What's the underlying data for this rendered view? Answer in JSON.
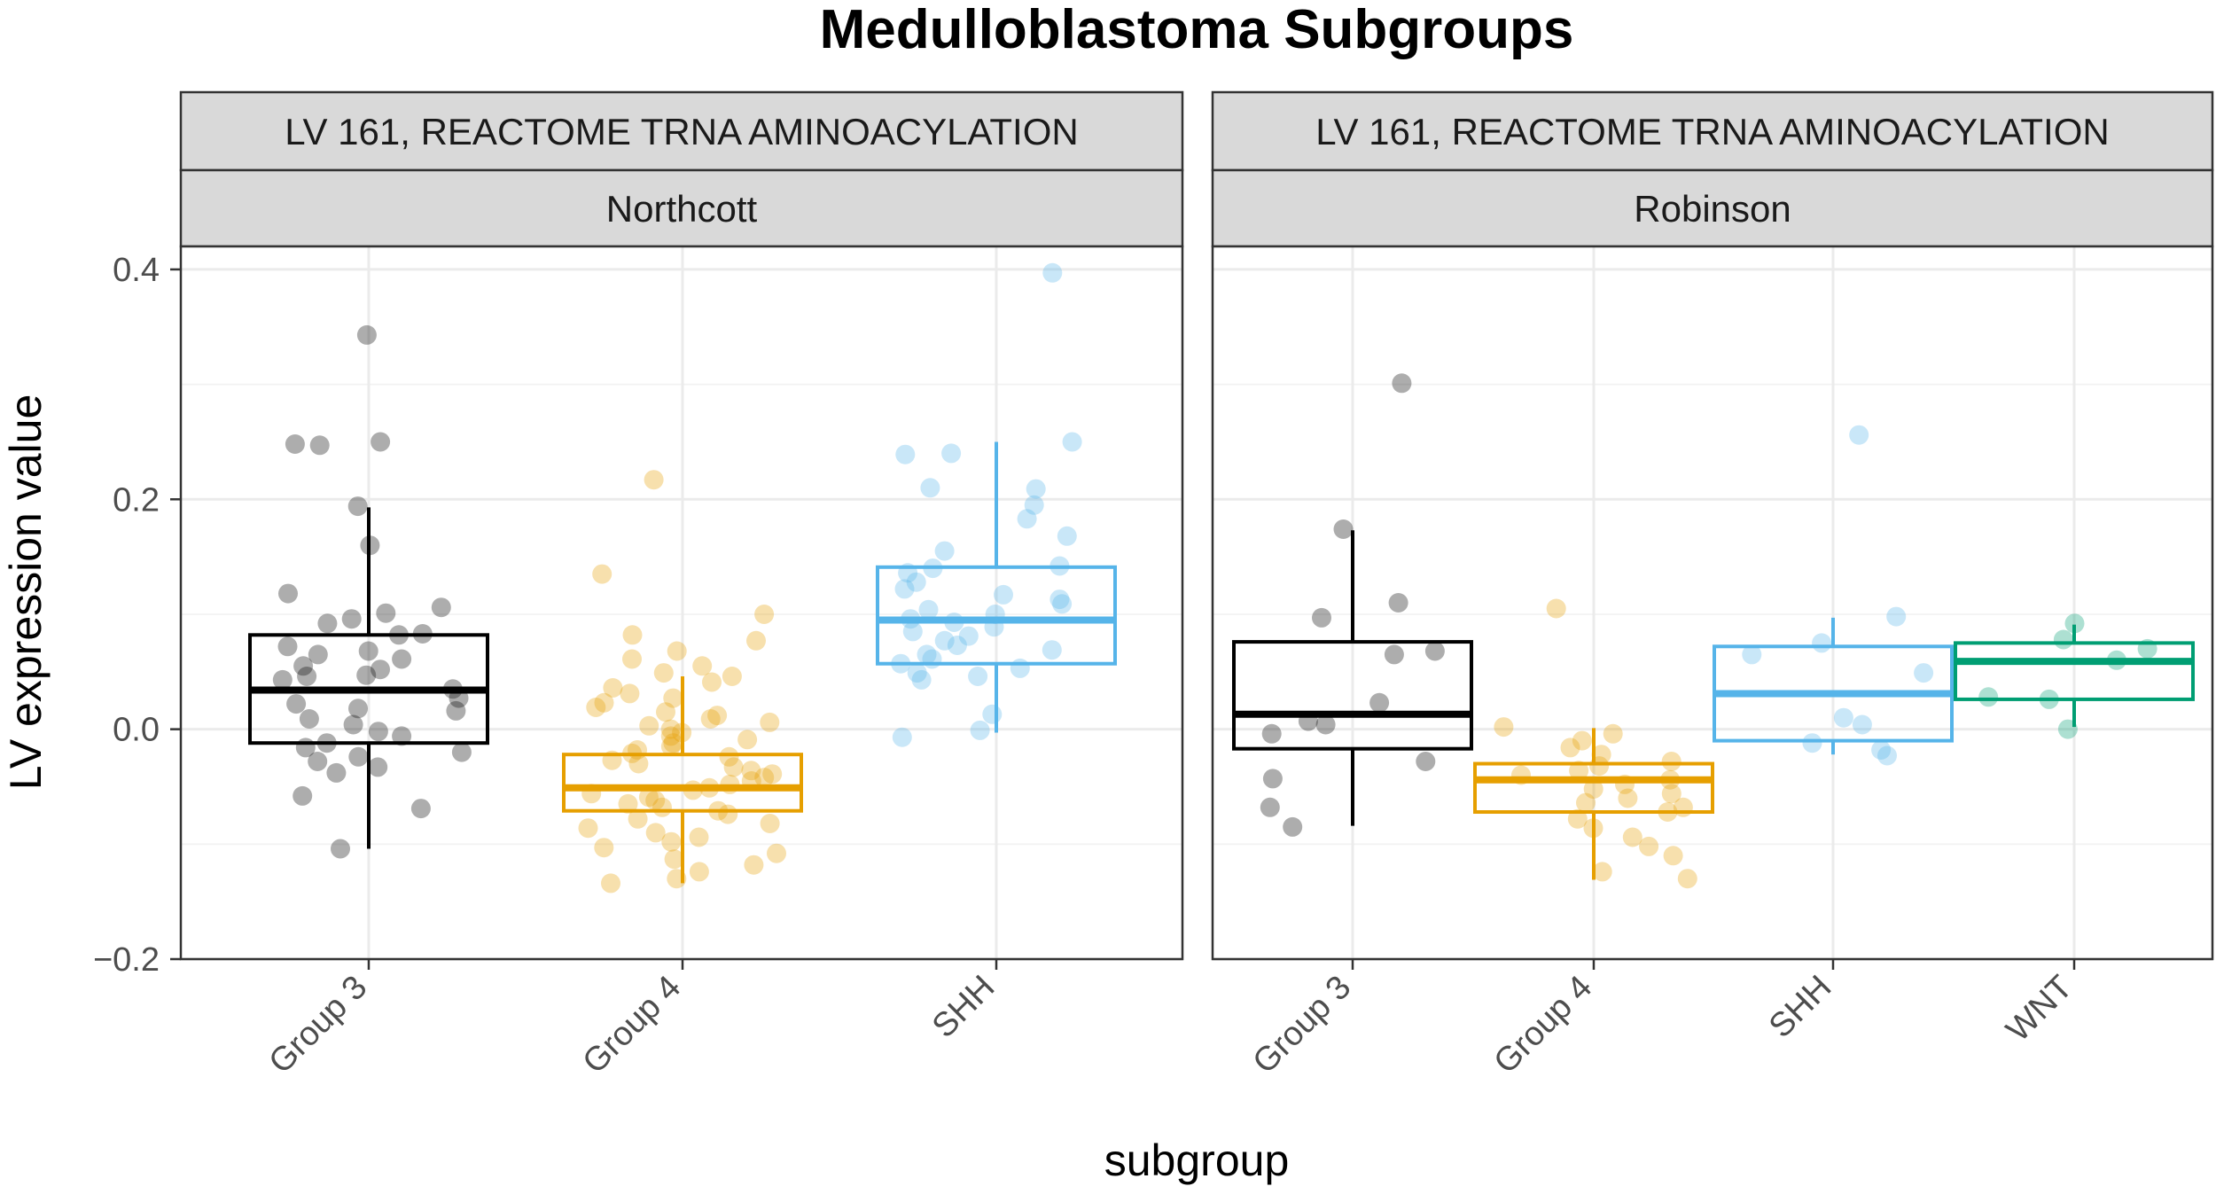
{
  "chart_data": {
    "type": "box",
    "title": "Medulloblastoma Subgroups",
    "xlabel": "subgroup",
    "ylabel": "LV expression value",
    "ylim": [
      -0.2,
      0.42
    ],
    "yticks": [
      -0.2,
      0.0,
      0.2,
      0.4
    ],
    "ytick_labels": [
      "−0.2",
      "0.0",
      "0.2",
      "0.4"
    ],
    "grid": true,
    "colors": {
      "Group 3": "#000000",
      "Group 4": "#E69F00",
      "SHH": "#56B4E9",
      "WNT": "#009E73"
    },
    "panels": [
      {
        "strip_top": "LV 161, REACTOME TRNA AMINOACYLATION",
        "strip_bottom": "Northcott",
        "categories": [
          "Group 3",
          "Group 4",
          "SHH"
        ],
        "boxes": [
          {
            "name": "Group 3",
            "whisker_low": -0.104,
            "q1": -0.012,
            "median": 0.034,
            "q3": 0.082,
            "whisker_high": 0.193
          },
          {
            "name": "Group 4",
            "whisker_low": -0.134,
            "q1": -0.071,
            "median": -0.051,
            "q3": -0.022,
            "whisker_high": 0.046
          },
          {
            "name": "SHH",
            "whisker_low": -0.003,
            "q1": 0.057,
            "median": 0.095,
            "q3": 0.141,
            "whisker_high": 0.25
          }
        ],
        "points": [
          {
            "name": "Group 3",
            "values": [
              0.343,
              0.25,
              0.248,
              0.247,
              0.194,
              0.16,
              0.118,
              0.106,
              0.101,
              0.096,
              0.092,
              0.083,
              0.082,
              0.072,
              0.068,
              0.065,
              0.061,
              0.055,
              0.052,
              0.047,
              0.046,
              0.043,
              0.035,
              0.027,
              0.022,
              0.018,
              0.016,
              0.009,
              0.004,
              -0.002,
              -0.006,
              -0.012,
              -0.016,
              -0.02,
              -0.024,
              -0.028,
              -0.033,
              -0.038,
              -0.058,
              -0.069,
              -0.104
            ]
          },
          {
            "name": "Group 4",
            "values": [
              0.217,
              0.135,
              0.1,
              0.082,
              0.077,
              0.068,
              0.061,
              0.055,
              0.049,
              0.046,
              0.041,
              0.036,
              0.031,
              0.027,
              0.023,
              0.019,
              0.015,
              0.012,
              0.009,
              0.006,
              0.003,
              0.0,
              -0.003,
              -0.006,
              -0.009,
              -0.012,
              -0.015,
              -0.018,
              -0.021,
              -0.024,
              -0.027,
              -0.03,
              -0.033,
              -0.036,
              -0.039,
              -0.042,
              -0.045,
              -0.048,
              -0.051,
              -0.053,
              -0.056,
              -0.059,
              -0.062,
              -0.065,
              -0.068,
              -0.071,
              -0.074,
              -0.078,
              -0.082,
              -0.086,
              -0.09,
              -0.094,
              -0.098,
              -0.103,
              -0.108,
              -0.113,
              -0.118,
              -0.124,
              -0.13,
              -0.134
            ]
          },
          {
            "name": "SHH",
            "values": [
              0.397,
              0.25,
              0.24,
              0.239,
              0.21,
              0.209,
              0.195,
              0.183,
              0.168,
              0.155,
              0.142,
              0.14,
              0.136,
              0.128,
              0.122,
              0.117,
              0.113,
              0.109,
              0.104,
              0.1,
              0.096,
              0.093,
              0.089,
              0.085,
              0.081,
              0.077,
              0.073,
              0.069,
              0.065,
              0.061,
              0.057,
              0.053,
              0.049,
              0.046,
              0.043,
              0.013,
              -0.001,
              -0.007
            ]
          }
        ]
      },
      {
        "strip_top": "LV 161, REACTOME TRNA AMINOACYLATION",
        "strip_bottom": "Robinson",
        "categories": [
          "Group 3",
          "Group 4",
          "SHH",
          "WNT"
        ],
        "boxes": [
          {
            "name": "Group 3",
            "whisker_low": -0.084,
            "q1": -0.017,
            "median": 0.013,
            "q3": 0.076,
            "whisker_high": 0.173
          },
          {
            "name": "Group 4",
            "whisker_low": -0.131,
            "q1": -0.072,
            "median": -0.044,
            "q3": -0.03,
            "whisker_high": 0.001
          },
          {
            "name": "SHH",
            "whisker_low": -0.022,
            "q1": -0.01,
            "median": 0.031,
            "q3": 0.072,
            "whisker_high": 0.097
          },
          {
            "name": "WNT",
            "whisker_low": 0.002,
            "q1": 0.026,
            "median": 0.059,
            "q3": 0.075,
            "whisker_high": 0.091
          }
        ],
        "points": [
          {
            "name": "Group 3",
            "values": [
              0.301,
              0.174,
              0.11,
              0.097,
              0.068,
              0.065,
              0.023,
              0.007,
              0.004,
              -0.004,
              -0.028,
              -0.043,
              -0.068,
              -0.085
            ]
          },
          {
            "name": "Group 4",
            "values": [
              0.105,
              0.002,
              -0.004,
              -0.01,
              -0.016,
              -0.022,
              -0.028,
              -0.032,
              -0.036,
              -0.04,
              -0.044,
              -0.048,
              -0.052,
              -0.056,
              -0.06,
              -0.064,
              -0.068,
              -0.072,
              -0.078,
              -0.086,
              -0.094,
              -0.102,
              -0.11,
              -0.124,
              -0.13
            ]
          },
          {
            "name": "SHH",
            "values": [
              0.256,
              0.098,
              0.075,
              0.065,
              0.049,
              0.01,
              0.004,
              -0.012,
              -0.018,
              -0.023
            ]
          },
          {
            "name": "WNT",
            "values": [
              0.092,
              0.078,
              0.07,
              0.06,
              0.028,
              0.026,
              0.0
            ]
          }
        ]
      }
    ]
  }
}
